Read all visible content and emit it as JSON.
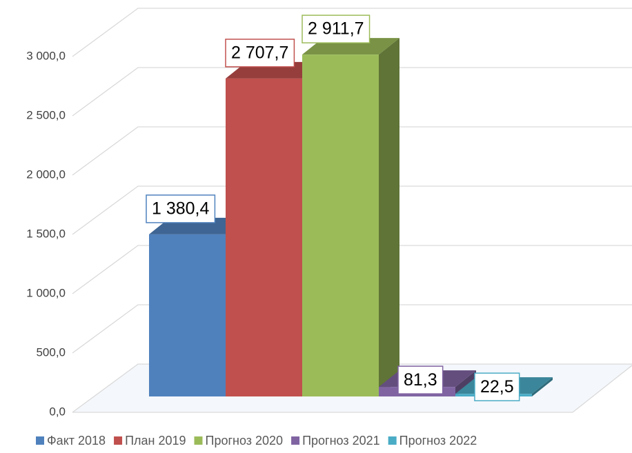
{
  "chart_data": {
    "type": "bar3d",
    "series": [
      {
        "name": "Факт 2018",
        "color": "#4f81bd",
        "values": [
          1380.4
        ],
        "value_labels": [
          "1 380,4"
        ]
      },
      {
        "name": "План 2019",
        "color": "#c0504d",
        "values": [
          2707.7
        ],
        "value_labels": [
          "2 707,7"
        ]
      },
      {
        "name": "Прогноз 2020",
        "color": "#9bbb59",
        "values": [
          2911.7
        ],
        "value_labels": [
          "2 911,7"
        ]
      },
      {
        "name": "Прогноз 2021",
        "color": "#8064a2",
        "values": [
          81.3
        ],
        "value_labels": [
          "81,3"
        ]
      },
      {
        "name": "Прогноз 2022",
        "color": "#4bacc6",
        "values": [
          22.5
        ],
        "value_labels": [
          "22,5"
        ]
      }
    ],
    "ylim": [
      0,
      3000
    ],
    "yticks": [
      {
        "value": 0,
        "label": "0,0"
      },
      {
        "value": 500,
        "label": "500,0"
      },
      {
        "value": 1000,
        "label": "1 000,0"
      },
      {
        "value": 1500,
        "label": "1 500,0"
      },
      {
        "value": 2000,
        "label": "2 000,0"
      },
      {
        "value": 2500,
        "label": "2 500,0"
      },
      {
        "value": 3000,
        "label": "3 000,0"
      }
    ],
    "grid": true,
    "legend": "bottom"
  }
}
